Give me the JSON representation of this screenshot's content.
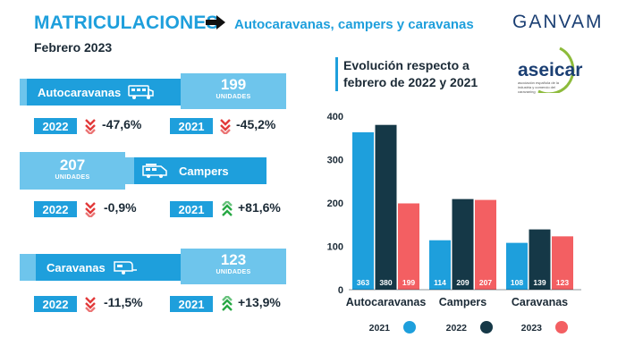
{
  "header": {
    "title": "MATRICULACIONES",
    "subtitle": "Autocaravanas, campers y caravanas",
    "date": "Febrero 2023",
    "brand": "GANVAM",
    "partner_logo_text": "aseicar",
    "partner_logo_sub": "asociación española de la industria y comercio del caravaning"
  },
  "cards": [
    {
      "label": "Autocaravanas",
      "icon": "motorhome-icon",
      "value": "199",
      "units": "UNIDADES",
      "comparisons": [
        {
          "year": "2022",
          "pct": "-47,6%",
          "trend": "down"
        },
        {
          "year": "2021",
          "pct": "-45,2%",
          "trend": "down"
        }
      ]
    },
    {
      "label": "Campers",
      "icon": "van-icon",
      "value": "207",
      "units": "UNIDADES",
      "comparisons": [
        {
          "year": "2022",
          "pct": "-0,9%",
          "trend": "down"
        },
        {
          "year": "2021",
          "pct": "+81,6%",
          "trend": "up"
        }
      ]
    },
    {
      "label": "Caravanas",
      "icon": "caravan-icon",
      "value": "123",
      "units": "UNIDADES",
      "comparisons": [
        {
          "year": "2022",
          "pct": "-11,5%",
          "trend": "down"
        },
        {
          "year": "2021",
          "pct": "+13,9%",
          "trend": "up"
        }
      ]
    }
  ],
  "colors": {
    "accent": "#1e9fdc",
    "light": "#6ec5ec",
    "dark": "#153847",
    "coral": "#f35f62",
    "down": "#e23a3a",
    "up": "#27a844"
  },
  "chart_data": {
    "type": "bar",
    "title": "Evolución respecto a febrero de 2022 y 2021",
    "categories": [
      "Autocaravanas",
      "Campers",
      "Caravanas"
    ],
    "series": [
      {
        "name": "2021",
        "color": "#1e9fdc",
        "values": [
          363,
          114,
          108
        ]
      },
      {
        "name": "2022",
        "color": "#153847",
        "values": [
          380,
          209,
          139
        ]
      },
      {
        "name": "2023",
        "color": "#f35f62",
        "values": [
          199,
          207,
          123
        ]
      }
    ],
    "ylim": [
      0,
      400
    ],
    "yticks": [
      0,
      100,
      200,
      300,
      400
    ],
    "grid": false,
    "legend": "bottom"
  }
}
